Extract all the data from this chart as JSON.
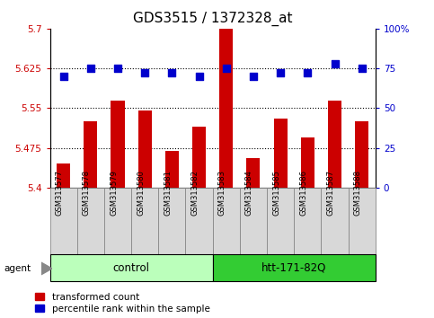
{
  "title": "GDS3515 / 1372328_at",
  "samples": [
    "GSM313577",
    "GSM313578",
    "GSM313579",
    "GSM313580",
    "GSM313581",
    "GSM313582",
    "GSM313583",
    "GSM313584",
    "GSM313585",
    "GSM313586",
    "GSM313587",
    "GSM313588"
  ],
  "transformed_count": [
    5.445,
    5.525,
    5.565,
    5.545,
    5.47,
    5.515,
    5.7,
    5.455,
    5.53,
    5.495,
    5.565,
    5.525
  ],
  "percentile_rank": [
    70,
    75,
    75,
    72,
    72,
    70,
    75,
    70,
    72,
    72,
    78,
    75
  ],
  "groups": [
    {
      "label": "control",
      "start": 0,
      "end": 6,
      "color": "#bbffbb"
    },
    {
      "label": "htt-171-82Q",
      "start": 6,
      "end": 12,
      "color": "#33cc33"
    }
  ],
  "agent_label": "agent",
  "ylim_left": [
    5.4,
    5.7
  ],
  "ylim_right": [
    0,
    100
  ],
  "yticks_left": [
    5.4,
    5.475,
    5.55,
    5.625,
    5.7
  ],
  "yticks_right": [
    0,
    25,
    50,
    75,
    100
  ],
  "ytick_labels_left": [
    "5.4",
    "5.475",
    "5.55",
    "5.625",
    "5.7"
  ],
  "ytick_labels_right": [
    "0",
    "25",
    "50",
    "75",
    "100%"
  ],
  "hline_values": [
    5.475,
    5.55,
    5.625
  ],
  "bar_color": "#cc0000",
  "dot_color": "#0000cc",
  "bar_width": 0.5,
  "dot_size": 30,
  "title_fontsize": 11,
  "tick_fontsize": 7.5,
  "sample_fontsize": 6,
  "legend_fontsize": 7.5,
  "group_label_fontsize": 8.5
}
